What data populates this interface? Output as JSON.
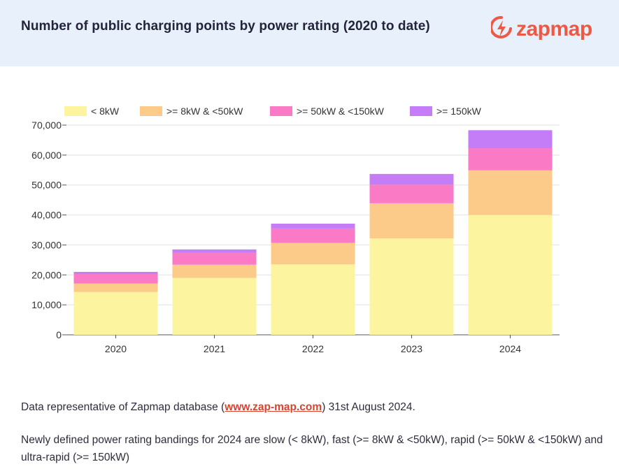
{
  "header": {
    "title": "Number of public charging points by power rating (2020 to date)",
    "logo_text": "zapmap",
    "logo_icon": "lightning-bolt-icon",
    "brand_color": "#ec5a46"
  },
  "chart_data": {
    "type": "bar",
    "stacked": true,
    "categories": [
      "2020",
      "2021",
      "2022",
      "2023",
      "2024"
    ],
    "series": [
      {
        "name": "< 8kW",
        "color": "#fdf4a0",
        "values": [
          14300,
          19000,
          23500,
          32200,
          40000
        ]
      },
      {
        "name": ">= 8kW & <50kW",
        "color": "#fccb8a",
        "values": [
          2800,
          4400,
          7200,
          11700,
          14900
        ]
      },
      {
        "name": ">= 50kW & <150kW",
        "color": "#fb7ac6",
        "values": [
          3200,
          4000,
          4800,
          6200,
          7400
        ]
      },
      {
        "name": ">= 150kW",
        "color": "#c47cf7",
        "values": [
          700,
          1100,
          1600,
          3600,
          6000
        ]
      }
    ],
    "yticks": [
      "0",
      "10,000",
      "20,000",
      "30,000",
      "40,000",
      "50,000",
      "60,000",
      "70,000"
    ],
    "ylim": [
      0,
      70000
    ],
    "grid": true,
    "legend_position": "top"
  },
  "footer": {
    "line1_before": "Data representative of Zapmap database (",
    "line1_link": "www.zap-map.com",
    "line1_after": ") 31st August 2024.",
    "line2": "Newly defined power rating bandings for 2024 are slow (< 8kW), fast (>= 8kW & <50kW), rapid (>= 50kW & <150kW) and ultra-rapid (>= 150kW)"
  }
}
